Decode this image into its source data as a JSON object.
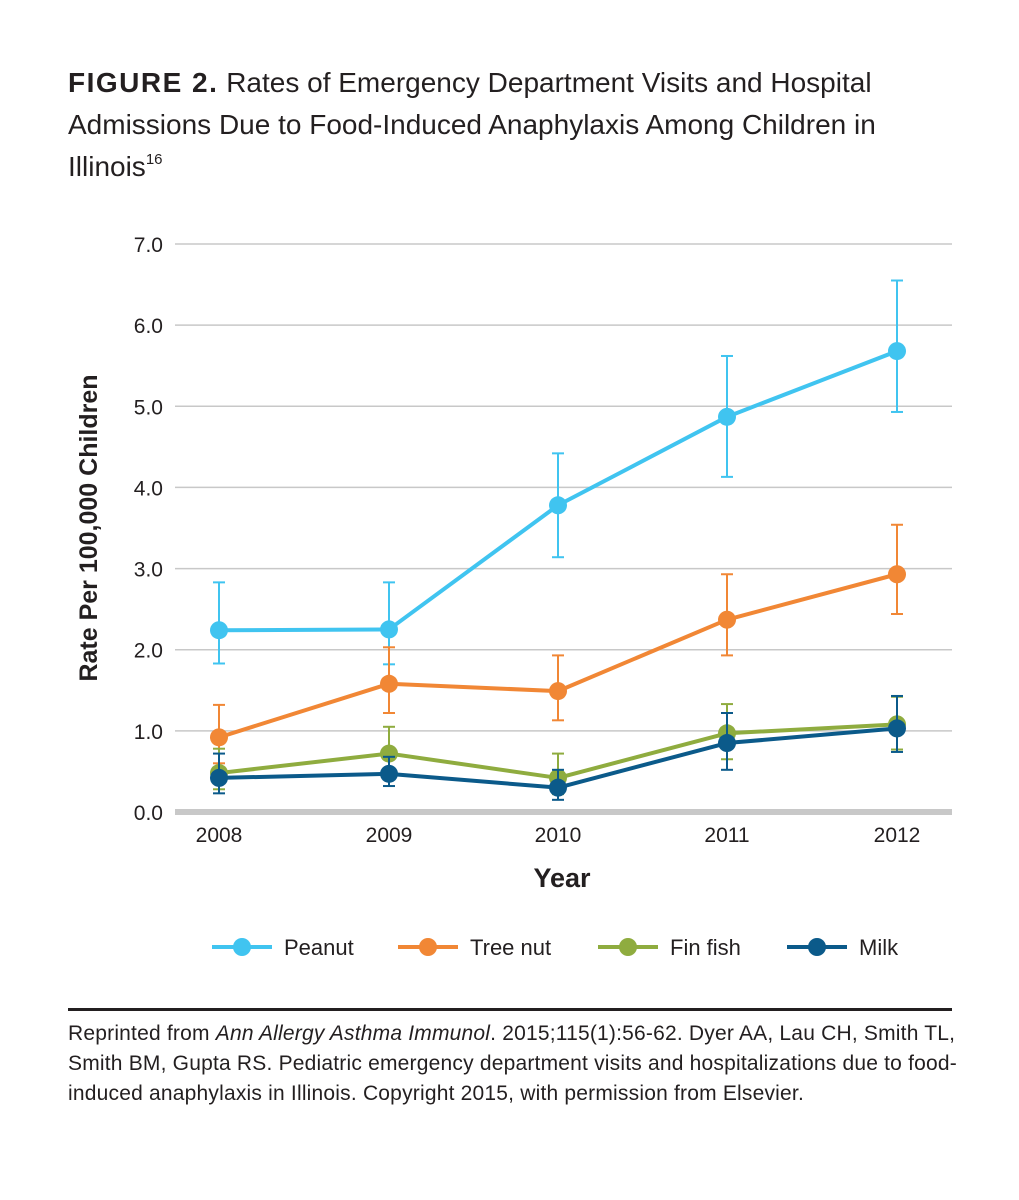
{
  "figure": {
    "label": "FIGURE 2.",
    "title": "Rates of Emergency Department Visits and Hospital Admissions Due to Food-Induced Anaphylaxis Among Children in Illinois",
    "reference": "16"
  },
  "chart_data": {
    "type": "line",
    "x": [
      "2008",
      "2009",
      "2010",
      "2011",
      "2012"
    ],
    "xlabel": "Year",
    "ylabel": "Rate Per 100,000 Children",
    "ylim": [
      0,
      7
    ],
    "yticks": [
      "0.0",
      "1.0",
      "2.0",
      "3.0",
      "4.0",
      "5.0",
      "6.0",
      "7.0"
    ],
    "grid": true,
    "legend_position": "bottom",
    "series": [
      {
        "name": "Peanut",
        "color": "#40c4f0",
        "values": [
          2.24,
          2.25,
          3.78,
          4.87,
          5.68
        ],
        "err_low": [
          1.83,
          1.82,
          3.14,
          4.13,
          4.93
        ],
        "err_high": [
          2.83,
          2.83,
          4.42,
          5.62,
          6.55
        ]
      },
      {
        "name": "Tree nut",
        "color": "#f18735",
        "values": [
          0.92,
          1.58,
          1.49,
          2.37,
          2.93
        ],
        "err_low": [
          0.6,
          1.22,
          1.13,
          1.93,
          2.44
        ],
        "err_high": [
          1.32,
          2.03,
          1.93,
          2.93,
          3.54
        ]
      },
      {
        "name": "Fin fish",
        "color": "#8fac3f",
        "values": [
          0.48,
          0.72,
          0.42,
          0.97,
          1.08
        ],
        "err_low": [
          0.28,
          0.42,
          0.22,
          0.65,
          0.77
        ],
        "err_high": [
          0.78,
          1.05,
          0.72,
          1.33,
          1.42
        ]
      },
      {
        "name": "Milk",
        "color": "#0b5a8a",
        "values": [
          0.42,
          0.47,
          0.3,
          0.85,
          1.03
        ],
        "err_low": [
          0.23,
          0.32,
          0.15,
          0.52,
          0.74
        ],
        "err_high": [
          0.72,
          0.68,
          0.52,
          1.22,
          1.43
        ]
      }
    ]
  },
  "citation": {
    "prefix": "Reprinted from ",
    "journal": "Ann Allergy Asthma Immunol",
    "rest": ". 2015;115(1):56-62. Dyer AA, Lau CH, Smith TL, Smith BM, Gupta RS. Pediatric emergency department visits and hospitalizations due to food-induced anaphylaxis in Illinois. Copyright 2015, with permission from Elsevier."
  }
}
